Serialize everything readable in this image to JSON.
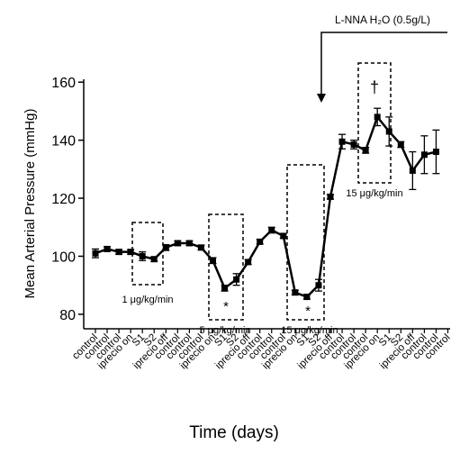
{
  "chart_data": {
    "type": "line",
    "x_label": "Time  (days)",
    "y_label": "Mean Arterial Pressure (mmHg)",
    "categories": [
      "control",
      "control",
      "control",
      "iprecio on",
      "S1",
      "S2",
      "iprecio off",
      "control",
      "control",
      "control",
      "iprecio on",
      "S1",
      "S2",
      "iprecio off",
      "control",
      "control",
      "control",
      "iprecio on",
      "S1",
      "S2",
      "iprecio off",
      "control",
      "control",
      "control",
      "iprecio on",
      "S1",
      "S2",
      "iprecio off",
      "control",
      "control",
      "control"
    ],
    "series": [
      {
        "name": "Mean Arterial Pressure",
        "color": "#000000",
        "values": [
          101,
          102.5,
          101.5,
          101.5,
          100,
          99,
          103,
          104.5,
          104.5,
          103,
          98.5,
          89,
          92,
          98,
          105,
          109,
          107,
          87.5,
          86,
          90,
          120.5,
          139.5,
          138.5,
          136.5,
          148,
          143,
          138.5,
          129.5,
          135,
          136,
          null
        ],
        "errors": [
          1.5,
          0.8,
          0.8,
          0.8,
          1.5,
          0.8,
          1,
          0.8,
          0.8,
          0.8,
          1,
          1,
          2,
          0.8,
          0.8,
          1,
          0.8,
          0.8,
          0.8,
          2,
          0.8,
          2.5,
          1.5,
          1,
          3,
          5,
          1,
          6.5,
          6.5,
          7.5,
          null
        ]
      }
    ],
    "ylim": [
      75,
      161
    ],
    "yticks": [
      80,
      100,
      120,
      140,
      160
    ],
    "annotations": [
      "1 μg/kg/min",
      "5 μg/kg/min",
      "*",
      "15 μg/kg/min",
      "*",
      "15 μg/kg/min",
      "†",
      "L-NNA H₂O (0.5g/L)"
    ]
  }
}
